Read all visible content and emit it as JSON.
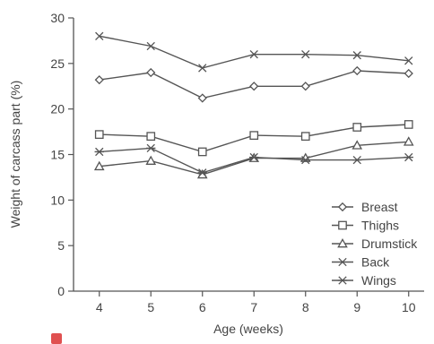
{
  "chart_data": {
    "type": "line",
    "title": "",
    "xlabel": "Age (weeks)",
    "ylabel": "Weight of carcass part (%)",
    "x": [
      4,
      5,
      6,
      7,
      8,
      9,
      10
    ],
    "xlim": [
      3.5,
      10.3
    ],
    "ylim": [
      0,
      30
    ],
    "yticks": [
      0,
      5,
      10,
      15,
      20,
      25,
      30
    ],
    "grid": false,
    "legend_position": "bottom-right",
    "series": [
      {
        "name": "Breast",
        "marker": "diamond",
        "values": [
          23.2,
          24.0,
          21.2,
          22.5,
          22.5,
          24.2,
          23.9
        ]
      },
      {
        "name": "Thighs",
        "marker": "square",
        "values": [
          17.2,
          17.0,
          15.3,
          17.1,
          17.0,
          18.0,
          18.3
        ]
      },
      {
        "name": "Drumstick",
        "marker": "triangle",
        "values": [
          13.7,
          14.3,
          12.8,
          14.6,
          14.6,
          16.0,
          16.4
        ]
      },
      {
        "name": "Back",
        "marker": "x",
        "values": [
          28.0,
          26.9,
          24.5,
          26.0,
          26.0,
          25.9,
          25.3
        ]
      },
      {
        "name": "Wings",
        "marker": "asterisk",
        "values": [
          15.3,
          15.7,
          13.0,
          14.7,
          14.4,
          14.4,
          14.7
        ]
      }
    ]
  }
}
